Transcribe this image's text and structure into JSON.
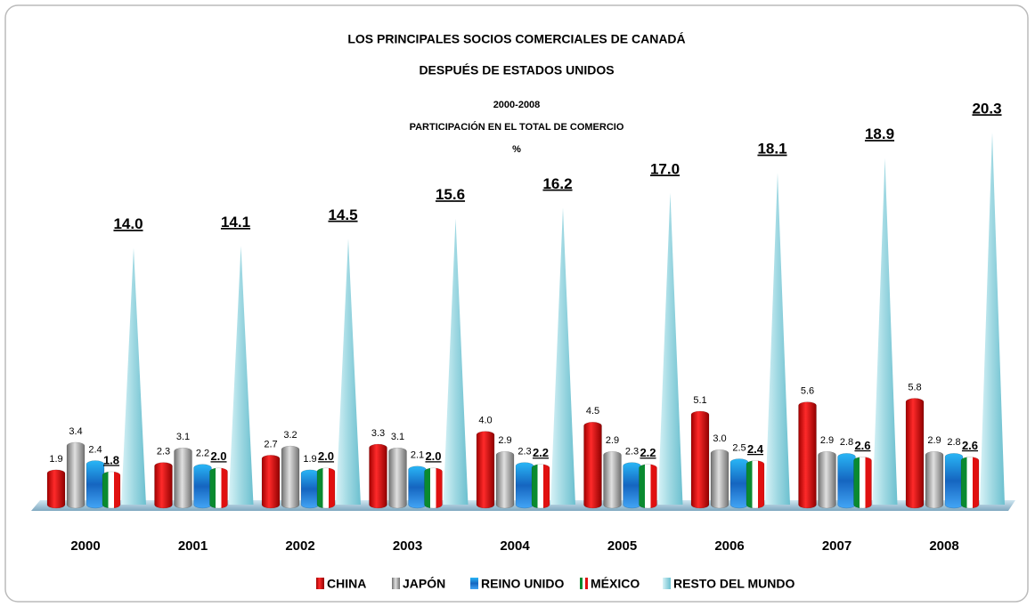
{
  "chart_data": {
    "type": "bar",
    "title": "LOS PRINCIPALES SOCIOS COMERCIALES DE CANADÁ",
    "subtitles": [
      "DESPUÉS DE ESTADOS UNIDOS",
      "2000-2008",
      "PARTICIPACIÓN EN EL TOTAL DE COMERCIO",
      "%"
    ],
    "categories": [
      "2000",
      "2001",
      "2002",
      "2003",
      "2004",
      "2005",
      "2006",
      "2007",
      "2008"
    ],
    "series": [
      {
        "name": "CHINA",
        "color": "#e00000",
        "shape": "cylinder",
        "label_style": "plain",
        "values": [
          1.9,
          2.3,
          2.7,
          3.3,
          4.0,
          4.5,
          5.1,
          5.6,
          5.8
        ],
        "value_labels": [
          "1.9",
          "2.3",
          "2.7",
          "3.3",
          "4.0",
          "4.5",
          "5.1",
          "5.6",
          "5.8"
        ]
      },
      {
        "name": "JAPÓN",
        "color": "#a6a6a6",
        "shape": "cylinder",
        "label_style": "plain",
        "values": [
          3.4,
          3.1,
          3.2,
          3.1,
          2.9,
          2.9,
          3.0,
          2.9,
          2.9
        ],
        "value_labels": [
          "3.4",
          "3.1",
          "3.2",
          "3.1",
          "2.9",
          "2.9",
          "3.0",
          "2.9",
          "2.9"
        ]
      },
      {
        "name": "REINO UNIDO",
        "color": "#1e88e5",
        "shape": "cylinder",
        "label_style": "plain",
        "values": [
          2.4,
          2.2,
          1.9,
          2.1,
          2.3,
          2.3,
          2.5,
          2.8,
          2.8
        ],
        "value_labels": [
          "2.4",
          "2.2",
          "1.9",
          "2.1",
          "2.3",
          "2.3",
          "2.5",
          "2.8",
          "2.8"
        ]
      },
      {
        "name": "MÉXICO",
        "color": "#1a8f3c",
        "shape": "cylinder",
        "label_style": "underline",
        "values": [
          1.8,
          2.0,
          2.0,
          2.0,
          2.2,
          2.2,
          2.4,
          2.6,
          2.6
        ],
        "value_labels": [
          "1.8",
          "2.0",
          "2.0",
          "2.0",
          "2.2",
          "2.2",
          "2.4",
          "2.6",
          "2.6"
        ]
      },
      {
        "name": "RESTO DEL MUNDO",
        "color": "#a8dde6",
        "shape": "pyramid",
        "label_style": "underline",
        "values": [
          14.0,
          14.1,
          14.5,
          15.6,
          16.2,
          17.0,
          18.1,
          18.9,
          20.3
        ],
        "value_labels": [
          "14.0",
          "14.1",
          "14.5",
          "15.6",
          "16.2",
          "17.0",
          "18.1",
          "18.9",
          "20.3"
        ]
      }
    ],
    "legend": "bottom"
  }
}
